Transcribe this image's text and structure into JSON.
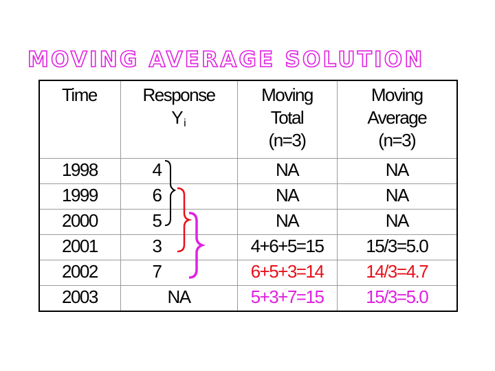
{
  "title": "MOVING AVERAGE SOLUTION",
  "header": {
    "time": "Time",
    "response": "Response",
    "response_var": "Y",
    "response_sub": "i",
    "total_l1": "Moving",
    "total_l2": "Total",
    "total_l3": "(n=3)",
    "avg_l1": "Moving",
    "avg_l2": "Average",
    "avg_l3": "(n=3)"
  },
  "rows": [
    {
      "time": "1998",
      "response": "4",
      "total": "NA",
      "average": "NA"
    },
    {
      "time": "1999",
      "response": "6",
      "total": "NA",
      "average": "NA"
    },
    {
      "time": "2000",
      "response": "5",
      "total": "NA",
      "average": "NA"
    },
    {
      "time": "2001",
      "response": "3",
      "total": "4+6+5=15",
      "average": "15/3=5.0"
    },
    {
      "time": "2002",
      "response": "7",
      "total": "6+5+3=14",
      "average": "14/3=4.7"
    },
    {
      "time": "2003",
      "response": "NA",
      "total": "5+3+7=15",
      "average": "15/3=5.0"
    }
  ],
  "colors": {
    "title_outline": "#e020e0",
    "highlight_red": "#e8101a",
    "highlight_magenta": "#e020e0",
    "bracket_black": "#000000"
  }
}
